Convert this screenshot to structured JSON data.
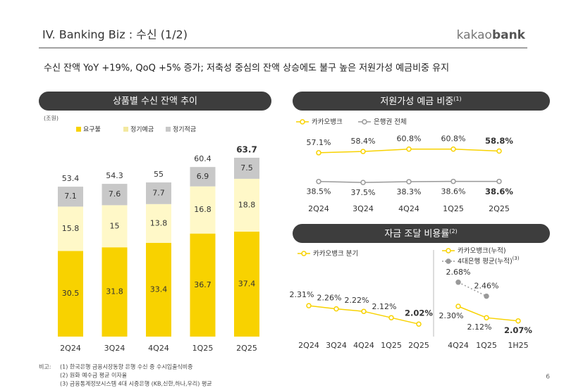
{
  "header": {
    "title": "IV. Banking Biz : 수신 (1/2)",
    "logo": [
      "kakao",
      "bank"
    ],
    "subtitle": "수신 잔액 YoY +19%, QoQ +5% 증가; 저축성 중심의 잔액 상승에도 불구 높은 저원가성 예금비중 유지"
  },
  "chart_data": [
    {
      "type": "bar",
      "title": "상품별 수신 잔액 추이",
      "unit": "(조원)",
      "stacked": true,
      "categories": [
        "2Q24",
        "3Q24",
        "4Q24",
        "1Q25",
        "2Q25"
      ],
      "series": [
        {
          "name": "요구불",
          "color": "#f8d200",
          "values": [
            30.5,
            31.8,
            33.4,
            36.7,
            37.4
          ]
        },
        {
          "name": "정기예금",
          "color": "#fff8c8",
          "values": [
            15.8,
            15.0,
            13.8,
            16.8,
            18.8
          ]
        },
        {
          "name": "정기적금",
          "color": "#c8c8c8",
          "values": [
            7.1,
            7.6,
            7.7,
            6.9,
            7.5
          ]
        }
      ],
      "totals": [
        53.4,
        54.3,
        55.0,
        60.4,
        63.7
      ],
      "bold_last": true
    },
    {
      "type": "line",
      "title": "저원가성 예금 비중",
      "title_note": "(1)",
      "categories": [
        "2Q24",
        "3Q24",
        "4Q24",
        "1Q25",
        "2Q25"
      ],
      "series": [
        {
          "name": "카카오뱅크",
          "color": "#f8d200",
          "values": [
            57.1,
            58.4,
            60.8,
            60.8,
            58.8
          ],
          "value_labels": [
            "57.1%",
            "58.4%",
            "60.8%",
            "60.8%",
            "58.8%"
          ],
          "bold_last": true
        },
        {
          "name": "은행권 전체",
          "color": "#999999",
          "values": [
            38.5,
            37.5,
            38.3,
            38.6,
            38.6
          ],
          "value_labels": [
            "38.5%",
            "37.5%",
            "38.3%",
            "38.6%",
            "38.6%"
          ],
          "bold_last": true
        }
      ]
    },
    {
      "type": "line",
      "title": "자금 조달 비용률",
      "title_note": "(2)",
      "categories": [
        "2Q24",
        "3Q24",
        "4Q24",
        "1Q25",
        "2Q25"
      ],
      "series": [
        {
          "name": "카카오뱅크 분기",
          "color": "#f8d200",
          "values": [
            2.31,
            2.26,
            2.22,
            2.12,
            2.02
          ],
          "value_labels": [
            "2.31%",
            "2.26%",
            "2.22%",
            "2.12%",
            "2.02%"
          ],
          "bold_last": true
        }
      ]
    },
    {
      "type": "line",
      "categories": [
        "4Q24",
        "1Q25",
        "1H25"
      ],
      "series": [
        {
          "name": "카카오뱅크(누적)",
          "color": "#f8d200",
          "values": [
            2.3,
            2.12,
            2.07
          ],
          "value_labels": [
            "2.30%",
            "2.12%",
            "2.07%"
          ],
          "bold_last": true
        },
        {
          "name": "4대은행 평균(누적)",
          "note": "(3)",
          "color": "#999999",
          "dashed": true,
          "values": [
            2.68,
            2.46,
            null
          ],
          "value_labels": [
            "2.68%",
            "2.46%",
            null
          ]
        }
      ]
    }
  ],
  "notes": {
    "label": "비고:",
    "items": [
      "(1) 한국은행 금융시장동향 은행 수신 중 수시입출식비중",
      "(2) 원화 예수금 평균 이자율",
      "(3) 금융통계정보시스템 4대 시중은행 (KB,신한,하나,우리) 평균"
    ]
  },
  "page": "6"
}
